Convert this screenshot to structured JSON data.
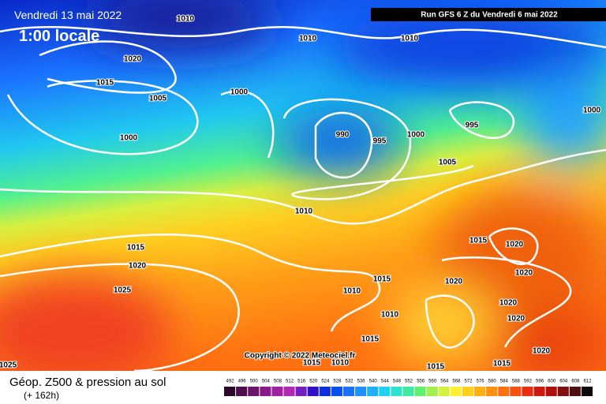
{
  "header": {
    "date": "Vendredi 13 mai 2022",
    "time": "1:00 locale",
    "run": "Run GFS 6 Z du Vendredi 6 mai 2022"
  },
  "copyright": "Copyright © 2022 Meteociel.fr",
  "isobar_labels": [
    1010,
    1010,
    1010,
    1020,
    1015,
    1005,
    1000,
    1000,
    995,
    990,
    995,
    1000,
    1000,
    1005,
    1010,
    1015,
    1020,
    1015,
    1020,
    1015,
    1020,
    1020,
    1010,
    1025,
    1020,
    1010,
    1020,
    1015,
    1020,
    1025,
    1015,
    1010,
    1015,
    1015
  ],
  "legend": {
    "title": "Géop. Z500 & pression au sol",
    "lead": "(+ 162h)",
    "ticks": [
      492,
      496,
      500,
      504,
      508,
      512,
      516,
      520,
      524,
      528,
      532,
      536,
      540,
      544,
      548,
      552,
      556,
      560,
      564,
      568,
      572,
      576,
      580,
      584,
      588,
      592,
      596,
      600,
      604,
      608,
      612
    ],
    "colors": [
      "#2a0a2a",
      "#4b0f4b",
      "#6a146a",
      "#8a1a8a",
      "#a020a0",
      "#b428b4",
      "#7020c0",
      "#3010c8",
      "#1030e0",
      "#0a50f0",
      "#1a70ff",
      "#2090ff",
      "#20b0ff",
      "#20d0f0",
      "#30e0d0",
      "#40e8a0",
      "#60f070",
      "#a0f050",
      "#d8f040",
      "#fff030",
      "#ffd020",
      "#ffb010",
      "#ff9010",
      "#ff7010",
      "#f85010",
      "#e83010",
      "#d01a10",
      "#b01010",
      "#801010",
      "#501010",
      "#100808"
    ]
  }
}
